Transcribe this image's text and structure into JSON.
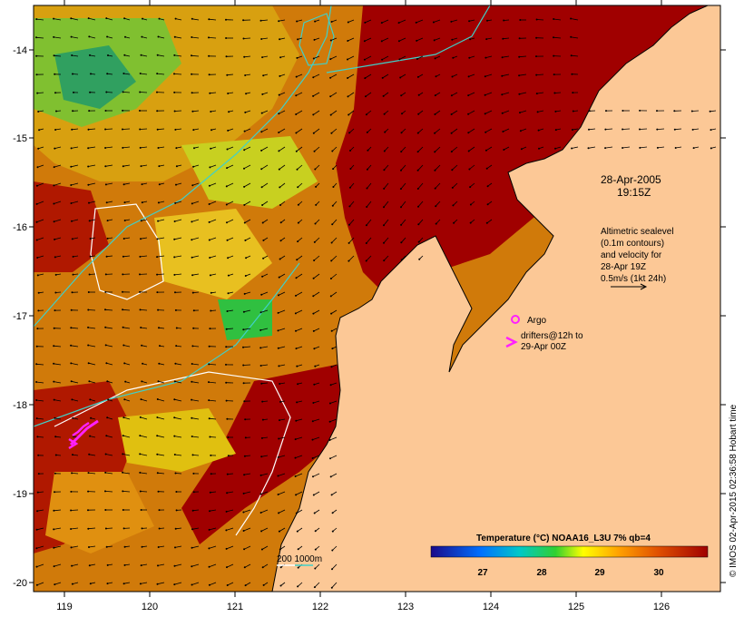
{
  "map": {
    "lat_ticks": [
      "-14",
      "-15",
      "-16",
      "-17",
      "-18",
      "-19",
      "-20"
    ],
    "lon_ticks": [
      "119",
      "120",
      "121",
      "122",
      "123",
      "124",
      "125",
      "126"
    ],
    "lat_range": [
      -20.1,
      -13.6
    ],
    "lon_range": [
      118.6,
      126.7
    ]
  },
  "annotations": {
    "date": "28-Apr-2005",
    "time": "19:15Z",
    "altimetry_lines": [
      "Altimetric sealevel",
      "(0.1m contours)",
      "and velocity for",
      "28-Apr 19Z",
      "0.5m/s (1kt 24h)"
    ],
    "argo_label": "Argo",
    "drifters_lines": [
      "drifters@12h to",
      "29-Apr 00Z"
    ],
    "bathymetry_label": "200  1000m"
  },
  "colorbar": {
    "title": "Temperature (°C) NOAA16_L3U 7% qb=4",
    "ticks": [
      "27",
      "28",
      "29",
      "30"
    ],
    "stops": [
      "#1a0a8a",
      "#0070ff",
      "#00c8c8",
      "#30d030",
      "#ffff00",
      "#ffa000",
      "#e05000",
      "#a00000"
    ]
  },
  "credit": "© IMOS 02-Apr-2015 02:36:58 Hobart time",
  "colors": {
    "land": "#fcc896",
    "warm": "#a00000",
    "bathy_200": "#ffffff",
    "bathy_1000": "#40d0c8",
    "drifter": "#ff20ff",
    "argo": "#ff20ff"
  }
}
